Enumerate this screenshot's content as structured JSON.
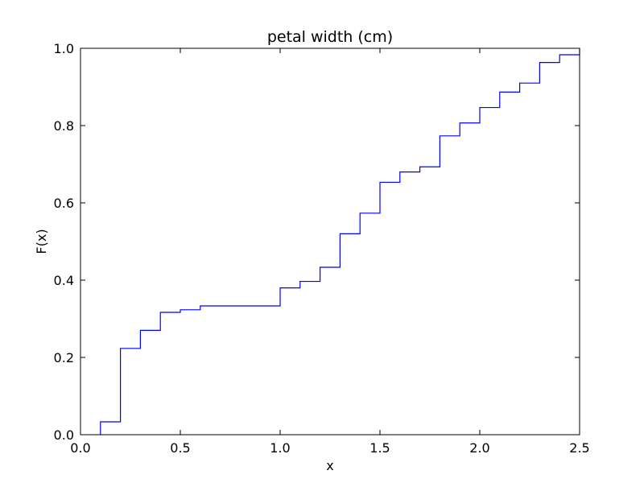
{
  "chart_data": {
    "type": "line",
    "subtype": "step",
    "title": "petal width (cm)",
    "xlabel": "x",
    "ylabel": "F(x)",
    "xlim": [
      0.0,
      2.5
    ],
    "ylim": [
      0.0,
      1.0
    ],
    "x_ticks": [
      {
        "value": 0.0,
        "label": "0.0"
      },
      {
        "value": 0.5,
        "label": "0.5"
      },
      {
        "value": 1.0,
        "label": "1.0"
      },
      {
        "value": 1.5,
        "label": "1.5"
      },
      {
        "value": 2.0,
        "label": "2.0"
      },
      {
        "value": 2.5,
        "label": "2.5"
      }
    ],
    "y_ticks": [
      {
        "value": 0.0,
        "label": "0.0"
      },
      {
        "value": 0.2,
        "label": "0.2"
      },
      {
        "value": 0.4,
        "label": "0.4"
      },
      {
        "value": 0.6,
        "label": "0.6"
      },
      {
        "value": 0.8,
        "label": "0.8"
      },
      {
        "value": 1.0,
        "label": "1.0"
      }
    ],
    "grid": false,
    "legend": "none",
    "series": [
      {
        "color": "#0000ff",
        "x": [
          0.1,
          0.2,
          0.3,
          0.4,
          0.5,
          0.6,
          1.0,
          1.1,
          1.2,
          1.3,
          1.4,
          1.5,
          1.6,
          1.7,
          1.8,
          1.9,
          2.0,
          2.1,
          2.2,
          2.3,
          2.4,
          2.5
        ],
        "y": [
          0.0333,
          0.2233,
          0.27,
          0.3167,
          0.3233,
          0.3333,
          0.38,
          0.3967,
          0.4333,
          0.52,
          0.5733,
          0.6533,
          0.68,
          0.6933,
          0.7733,
          0.8067,
          0.8467,
          0.8867,
          0.91,
          0.9633,
          0.9833,
          1.0
        ]
      }
    ]
  }
}
